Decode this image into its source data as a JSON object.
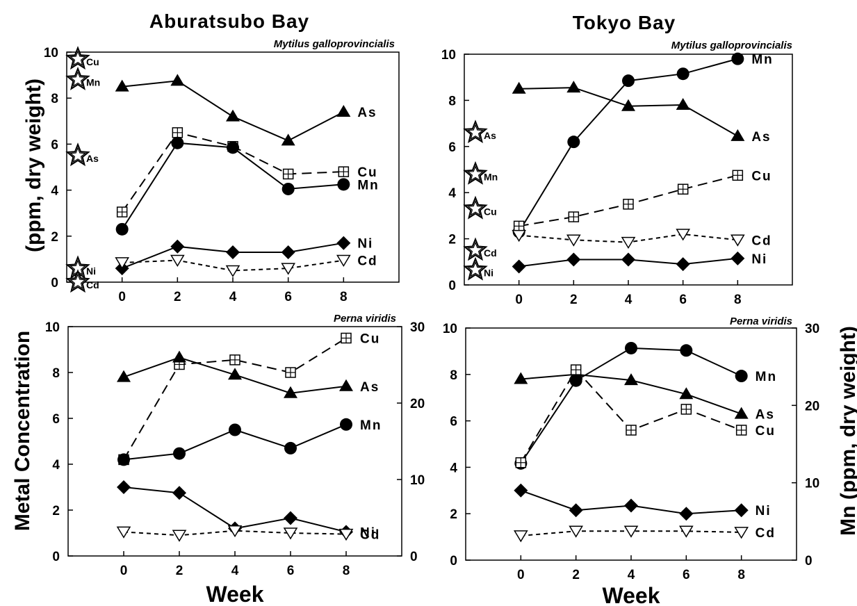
{
  "labels": {
    "title_left": "Aburatsubo Bay",
    "title_right": "Tokyo Bay",
    "ylabel_top": "(ppm, dry weight)",
    "ylabel_left": "Metal Concentration",
    "ylabel_right": "Mn (ppm, dry weight)",
    "xlabel": "Week"
  },
  "chart_data": [
    {
      "type": "line",
      "panel": "top-left",
      "title": "Mytilus galloprovincialis",
      "x_ticks": [
        0,
        2,
        4,
        6,
        8
      ],
      "y_ticks": [
        0,
        2,
        4,
        6,
        8,
        10
      ],
      "xlim": [
        -2,
        10
      ],
      "ylim": [
        0,
        10
      ],
      "series": [
        {
          "name": "As",
          "marker": "triangle",
          "dash": "solid",
          "x": [
            0,
            2,
            4,
            6,
            8
          ],
          "values": [
            8.5,
            8.75,
            7.2,
            6.15,
            7.4
          ]
        },
        {
          "name": "Cu",
          "marker": "square-plus",
          "dash": "long",
          "x": [
            0,
            2,
            4,
            6,
            8
          ],
          "values": [
            3.05,
            6.5,
            5.9,
            4.7,
            4.8
          ]
        },
        {
          "name": "Mn",
          "marker": "circle",
          "dash": "solid",
          "x": [
            0,
            2,
            4,
            6,
            8
          ],
          "values": [
            2.3,
            6.05,
            5.85,
            4.05,
            4.25
          ]
        },
        {
          "name": "Ni",
          "marker": "diamond",
          "dash": "solid",
          "x": [
            0,
            2,
            4,
            6,
            8
          ],
          "values": [
            0.6,
            1.55,
            1.3,
            1.3,
            1.7
          ]
        },
        {
          "name": "Cd",
          "marker": "triangle-down",
          "dash": "short",
          "x": [
            0,
            2,
            4,
            6,
            8
          ],
          "values": [
            0.85,
            0.95,
            0.5,
            0.6,
            0.95
          ]
        }
      ],
      "reference_stars": [
        {
          "label": "Cu",
          "value": 9.7
        },
        {
          "label": "Mn",
          "value": 8.8
        },
        {
          "label": "As",
          "value": 5.5
        },
        {
          "label": "Ni",
          "value": 0.6
        },
        {
          "label": "Cd",
          "value": 0
        }
      ]
    },
    {
      "type": "line",
      "panel": "top-right",
      "title": "Mytilus galloprovincialis",
      "x_ticks": [
        0,
        2,
        4,
        6,
        8
      ],
      "y_ticks": [
        0,
        2,
        4,
        6,
        8,
        10
      ],
      "xlim": [
        -2,
        10
      ],
      "ylim": [
        0,
        10
      ],
      "series": [
        {
          "name": "Mn",
          "marker": "circle",
          "dash": "solid",
          "x": [
            0,
            2,
            4,
            6,
            8
          ],
          "values": [
            2.3,
            6.2,
            8.85,
            9.15,
            9.8
          ]
        },
        {
          "name": "As",
          "marker": "triangle",
          "dash": "solid",
          "x": [
            0,
            2,
            4,
            6,
            8
          ],
          "values": [
            8.5,
            8.55,
            7.75,
            7.8,
            6.45
          ]
        },
        {
          "name": "Cu",
          "marker": "square-plus",
          "dash": "long",
          "x": [
            0,
            2,
            4,
            6,
            8
          ],
          "values": [
            2.55,
            2.95,
            3.5,
            4.15,
            4.75
          ]
        },
        {
          "name": "Cd",
          "marker": "triangle-down",
          "dash": "short",
          "x": [
            0,
            2,
            4,
            6,
            8
          ],
          "values": [
            2.15,
            1.95,
            1.85,
            2.2,
            1.95
          ]
        },
        {
          "name": "Ni",
          "marker": "diamond",
          "dash": "solid",
          "x": [
            0,
            2,
            4,
            6,
            8
          ],
          "values": [
            0.8,
            1.1,
            1.1,
            0.9,
            1.15
          ]
        }
      ],
      "reference_stars": [
        {
          "label": "As",
          "value": 6.6
        },
        {
          "label": "Mn",
          "value": 4.8
        },
        {
          "label": "Cu",
          "value": 3.3
        },
        {
          "label": "Cd",
          "value": 1.5
        },
        {
          "label": "Ni",
          "value": 0.65
        }
      ]
    },
    {
      "type": "line",
      "panel": "bottom-left",
      "title": "Perna viridis",
      "x_ticks": [
        0,
        2,
        4,
        6,
        8
      ],
      "y_ticks": [
        0,
        2,
        4,
        6,
        8,
        10
      ],
      "y2_ticks": [
        0,
        10,
        20,
        30
      ],
      "xlim": [
        -2,
        10
      ],
      "ylim": [
        0,
        10
      ],
      "y2lim": [
        0,
        30
      ],
      "series": [
        {
          "name": "Cu",
          "marker": "square-plus",
          "dash": "long",
          "x": [
            0,
            2,
            4,
            6,
            8
          ],
          "values": [
            4.2,
            8.35,
            8.55,
            8.0,
            9.5
          ]
        },
        {
          "name": "As",
          "marker": "triangle",
          "dash": "solid",
          "x": [
            0,
            2,
            4,
            6,
            8
          ],
          "values": [
            7.8,
            8.65,
            7.9,
            7.1,
            7.4
          ]
        },
        {
          "name": "Mn",
          "marker": "circle",
          "dash": "solid",
          "axis": "right",
          "x": [
            0,
            2,
            4,
            6,
            8
          ],
          "values": [
            12.6,
            13.4,
            16.5,
            14.1,
            17.2
          ]
        },
        {
          "name": "Ni",
          "marker": "diamond",
          "dash": "solid",
          "x": [
            0,
            2,
            4,
            6,
            8
          ],
          "values": [
            3.0,
            2.75,
            1.2,
            1.65,
            1.05
          ]
        },
        {
          "name": "Cd",
          "marker": "triangle-down",
          "dash": "short",
          "x": [
            0,
            2,
            4,
            6,
            8
          ],
          "values": [
            1.05,
            0.9,
            1.1,
            1.0,
            0.95
          ]
        }
      ]
    },
    {
      "type": "line",
      "panel": "bottom-right",
      "title": "Perna viridis",
      "x_ticks": [
        0,
        2,
        4,
        6,
        8
      ],
      "y_ticks": [
        0,
        2,
        4,
        6,
        8,
        10
      ],
      "y2_ticks": [
        0,
        10,
        20,
        30
      ],
      "xlim": [
        -2,
        10
      ],
      "ylim": [
        0,
        10
      ],
      "y2lim": [
        0,
        30
      ],
      "series": [
        {
          "name": "Mn",
          "marker": "circle",
          "dash": "solid",
          "axis": "right",
          "x": [
            0,
            2,
            4,
            6,
            8
          ],
          "values": [
            12.5,
            23.2,
            27.4,
            27.1,
            23.8
          ]
        },
        {
          "name": "As",
          "marker": "triangle",
          "dash": "solid",
          "x": [
            0,
            2,
            4,
            6,
            8
          ],
          "values": [
            7.8,
            8.0,
            7.75,
            7.15,
            6.3
          ]
        },
        {
          "name": "Cu",
          "marker": "square-plus",
          "dash": "long",
          "x": [
            0,
            2,
            4,
            6,
            8
          ],
          "values": [
            4.2,
            8.2,
            5.6,
            6.5,
            5.6
          ]
        },
        {
          "name": "Ni",
          "marker": "diamond",
          "dash": "solid",
          "x": [
            0,
            2,
            4,
            6,
            8
          ],
          "values": [
            3.0,
            2.15,
            2.35,
            2.0,
            2.15
          ]
        },
        {
          "name": "Cd",
          "marker": "triangle-down",
          "dash": "short",
          "x": [
            0,
            2,
            4,
            6,
            8
          ],
          "values": [
            1.05,
            1.25,
            1.25,
            1.25,
            1.2
          ]
        }
      ]
    }
  ]
}
